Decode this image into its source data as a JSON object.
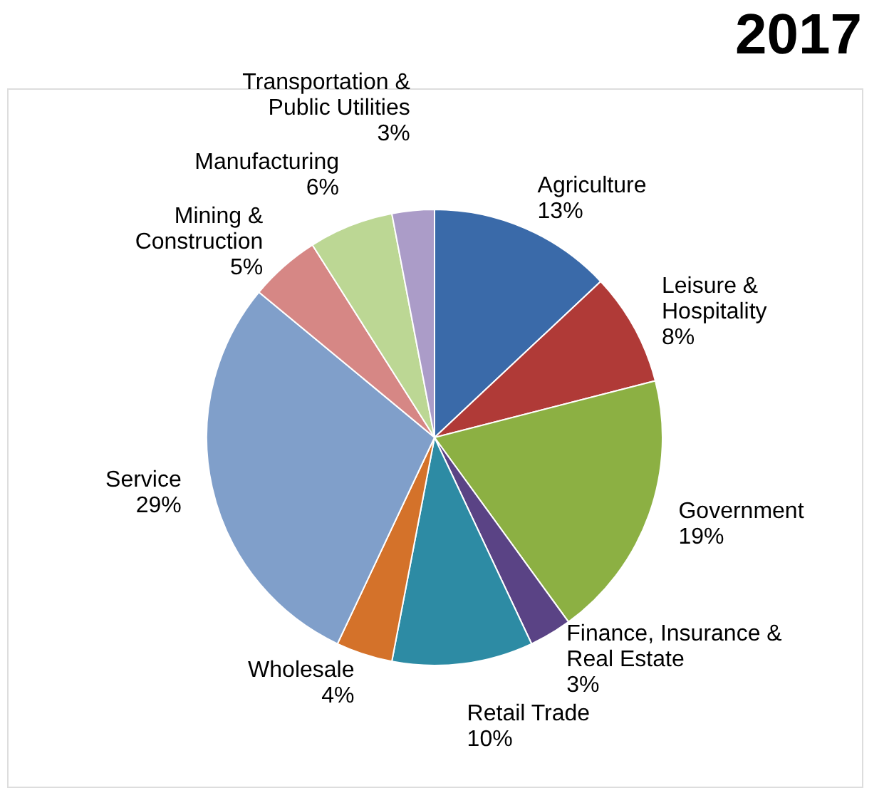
{
  "chart_data": {
    "type": "pie",
    "title": "2017",
    "categories": [
      "Agriculture",
      "Leisure &\nHospitality",
      "Government",
      "Finance, Insurance &\nReal Estate",
      "Retail Trade",
      "Wholesale",
      "Service",
      "Mining &\nConstruction",
      "Manufacturing",
      "Transportation &\nPublic Utilities"
    ],
    "values": [
      13,
      8,
      19,
      3,
      10,
      4,
      29,
      5,
      6,
      3
    ],
    "value_labels": [
      "13%",
      "8%",
      "19%",
      "3%",
      "10%",
      "4%",
      "29%",
      "5%",
      "6%",
      "3%"
    ],
    "colors": [
      "#3a6aa9",
      "#b03a37",
      "#8cb043",
      "#5a4385",
      "#2d8ba4",
      "#d4722a",
      "#809fca",
      "#d68785",
      "#bcd794",
      "#ab9cc8"
    ],
    "legend": false
  }
}
